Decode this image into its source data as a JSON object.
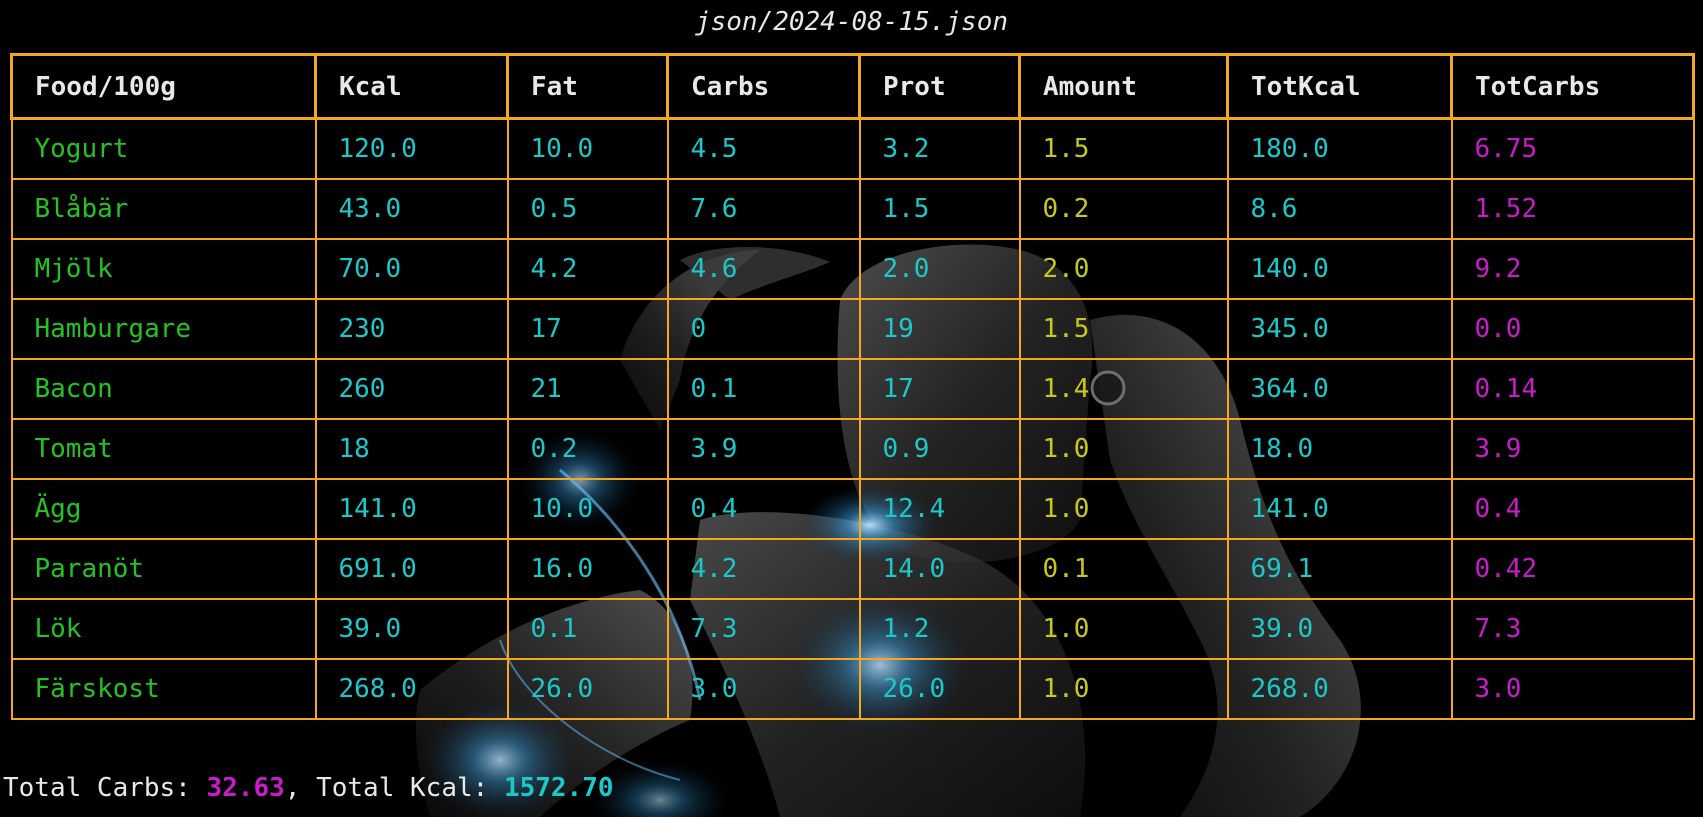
{
  "title": "json/2024-08-15.json",
  "colors": {
    "border": "#f5a623",
    "food": "#22c322",
    "numeric": "#1cc8c8",
    "amount": "#c8c81c",
    "carbs": "#c81cc8",
    "header": "#e8e8e8",
    "background": "#000000"
  },
  "table": {
    "headers": [
      "Food/100g",
      "Kcal",
      "Fat",
      "Carbs",
      "Prot",
      "Amount",
      "TotKcal",
      "TotCarbs"
    ],
    "rows": [
      [
        "Yogurt",
        "120.0",
        "10.0",
        "4.5",
        "3.2",
        "1.5",
        "180.0",
        "6.75"
      ],
      [
        "Blåbär",
        "43.0",
        "0.5",
        "7.6",
        "1.5",
        "0.2",
        "8.6",
        "1.52"
      ],
      [
        "Mjölk",
        "70.0",
        "4.2",
        "4.6",
        "2.0",
        "2.0",
        "140.0",
        "9.2"
      ],
      [
        "Hamburgare",
        "230",
        "17",
        "0",
        "19",
        "1.5",
        "345.0",
        "0.0"
      ],
      [
        "Bacon",
        "260",
        "21",
        "0.1",
        "17",
        "1.4",
        "364.0",
        "0.14"
      ],
      [
        "Tomat",
        "18",
        "0.2",
        "3.9",
        "0.9",
        "1.0",
        "18.0",
        "3.9"
      ],
      [
        "Ägg",
        "141.0",
        "10.0",
        "0.4",
        "12.4",
        "1.0",
        "141.0",
        "0.4"
      ],
      [
        "Paranöt",
        "691.0",
        "16.0",
        "4.2",
        "14.0",
        "0.1",
        "69.1",
        "0.42"
      ],
      [
        "Lök",
        "39.0",
        "0.1",
        "7.3",
        "1.2",
        "1.0",
        "39.0",
        "7.3"
      ],
      [
        "Färskost",
        "268.0",
        "26.0",
        "3.0",
        "26.0",
        "1.0",
        "268.0",
        "3.0"
      ]
    ]
  },
  "footer": {
    "carbs_label": "Total Carbs: ",
    "carbs_value": "32.63",
    "separator": ", Total Kcal: ",
    "kcal_value": "1572.70"
  },
  "background": {
    "icon": "robot-silhouette-icon"
  }
}
